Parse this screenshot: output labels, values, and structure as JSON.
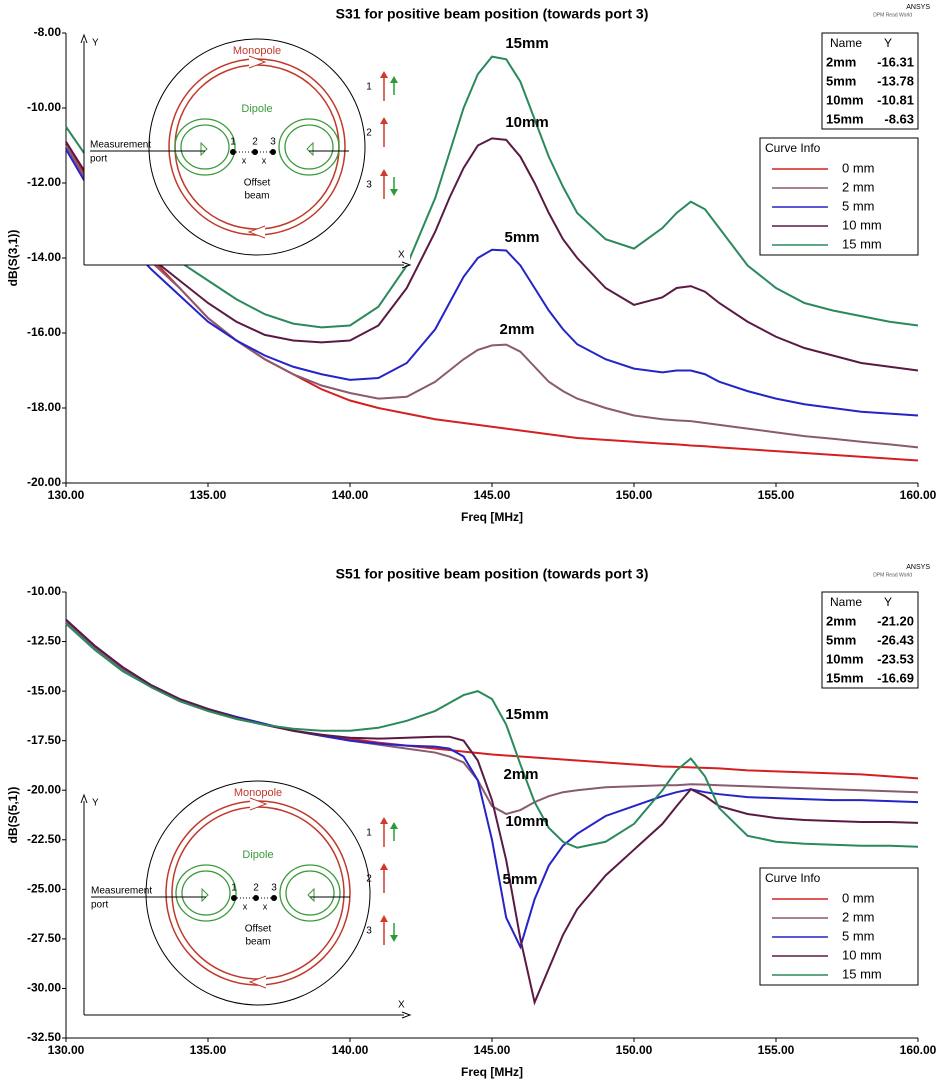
{
  "chart_data": [
    {
      "type": "line",
      "title": "S31 for positive beam position (towards port 3)",
      "brand": "ANSYS",
      "watermark": "DPM Read World",
      "x_label": "Freq [MHz]",
      "y_label": "dB(S(3,1))",
      "x": [
        130,
        131,
        132,
        133,
        134,
        135,
        136,
        137,
        138,
        139,
        140,
        141,
        142,
        143,
        143.5,
        144,
        144.5,
        145,
        145.5,
        146,
        146.5,
        147,
        147.5,
        148,
        149,
        150,
        151,
        151.5,
        152,
        152.5,
        153,
        154,
        155,
        156,
        157,
        158,
        159,
        160
      ],
      "xlim": [
        130,
        160
      ],
      "xticks": [
        {
          "value": 130,
          "label": "130.00"
        },
        {
          "value": 135,
          "label": "135.00"
        },
        {
          "value": 140,
          "label": "140.00"
        },
        {
          "value": 145,
          "label": "145.00"
        },
        {
          "value": 150,
          "label": "150.00"
        },
        {
          "value": 155,
          "label": "155.00"
        },
        {
          "value": 160,
          "label": "160.00"
        }
      ],
      "ylim": [
        -20,
        -8
      ],
      "yticks": [
        {
          "value": -8,
          "label": "-8.00"
        },
        {
          "value": -10,
          "label": "-10.00"
        },
        {
          "value": -12,
          "label": "-12.00"
        },
        {
          "value": -14,
          "label": "-14.00"
        },
        {
          "value": -16,
          "label": "-16.00"
        },
        {
          "value": -18,
          "label": "-18.00"
        },
        {
          "value": -20,
          "label": "-20.00"
        }
      ],
      "legend_title": "Curve Info",
      "series": [
        {
          "name": "0 mm",
          "color": "#d42020",
          "values": [
            -10.9,
            -12.2,
            -13.2,
            -14.0,
            -14.8,
            -15.6,
            -16.2,
            -16.7,
            -17.1,
            -17.5,
            -17.8,
            -18.0,
            -18.15,
            -18.3,
            -18.35,
            -18.4,
            -18.45,
            -18.5,
            -18.55,
            -18.6,
            -18.65,
            -18.7,
            -18.75,
            -18.8,
            -18.85,
            -18.9,
            -18.95,
            -18.97,
            -19.0,
            -19.02,
            -19.05,
            -19.1,
            -19.15,
            -19.2,
            -19.25,
            -19.3,
            -19.35,
            -19.4
          ]
        },
        {
          "name": "2 mm",
          "color": "#8a5a6e",
          "values": [
            -11.0,
            -12.3,
            -13.3,
            -14.1,
            -14.8,
            -15.6,
            -16.2,
            -16.7,
            -17.1,
            -17.4,
            -17.6,
            -17.75,
            -17.7,
            -17.3,
            -17.0,
            -16.7,
            -16.45,
            -16.33,
            -16.31,
            -16.5,
            -16.9,
            -17.3,
            -17.55,
            -17.75,
            -18.0,
            -18.2,
            -18.3,
            -18.33,
            -18.35,
            -18.4,
            -18.45,
            -18.55,
            -18.65,
            -18.75,
            -18.82,
            -18.9,
            -18.97,
            -19.05
          ]
        },
        {
          "name": "5 mm",
          "color": "#2424c8",
          "values": [
            -11.1,
            -12.4,
            -13.5,
            -14.3,
            -15.0,
            -15.7,
            -16.2,
            -16.6,
            -16.9,
            -17.1,
            -17.25,
            -17.2,
            -16.8,
            -15.9,
            -15.2,
            -14.5,
            -14.0,
            -13.78,
            -13.8,
            -14.2,
            -14.8,
            -15.4,
            -15.9,
            -16.3,
            -16.7,
            -16.95,
            -17.05,
            -17.0,
            -17.0,
            -17.1,
            -17.3,
            -17.55,
            -17.75,
            -17.9,
            -18.0,
            -18.1,
            -18.15,
            -18.2
          ]
        },
        {
          "name": "10 mm",
          "color": "#5a1a44",
          "values": [
            -10.9,
            -12.1,
            -13.1,
            -14.0,
            -14.6,
            -15.2,
            -15.7,
            -16.05,
            -16.2,
            -16.25,
            -16.2,
            -15.8,
            -14.8,
            -13.3,
            -12.4,
            -11.6,
            -11.0,
            -10.81,
            -10.85,
            -11.3,
            -12.0,
            -12.8,
            -13.5,
            -14.0,
            -14.8,
            -15.25,
            -15.05,
            -14.8,
            -14.75,
            -14.9,
            -15.2,
            -15.7,
            -16.1,
            -16.4,
            -16.6,
            -16.8,
            -16.9,
            -17.0
          ]
        },
        {
          "name": "15 mm",
          "color": "#2a8a5c",
          "values": [
            -10.5,
            -11.6,
            -12.5,
            -13.3,
            -14.1,
            -14.6,
            -15.1,
            -15.5,
            -15.75,
            -15.85,
            -15.8,
            -15.3,
            -14.2,
            -12.4,
            -11.2,
            -10.0,
            -9.1,
            -8.63,
            -8.7,
            -9.3,
            -10.3,
            -11.3,
            -12.1,
            -12.8,
            -13.5,
            -13.75,
            -13.2,
            -12.8,
            -12.5,
            -12.7,
            -13.2,
            -14.2,
            -14.8,
            -15.2,
            -15.4,
            -15.55,
            -15.7,
            -15.8
          ]
        }
      ],
      "annotations": [
        "15mm",
        "10mm",
        "5mm",
        "2mm"
      ],
      "markers": {
        "columns": [
          "Name",
          "Y"
        ],
        "rows": [
          [
            "2mm",
            "-16.31"
          ],
          [
            "5mm",
            "-13.78"
          ],
          [
            "10mm",
            "-10.81"
          ],
          [
            "15mm",
            "-8.63"
          ]
        ]
      },
      "inset": {
        "axis_y": "Y",
        "axis_x": "X",
        "monopole": "Monopole",
        "dipole": "Dipole",
        "port": [
          "Measurement",
          "port"
        ],
        "beam": [
          "Offset",
          "beam"
        ],
        "positions": [
          "1",
          "2",
          "3"
        ],
        "beam_marks": [
          "x",
          "x"
        ],
        "arrows": [
          "1",
          "2",
          "3"
        ]
      }
    },
    {
      "type": "line",
      "title": "S51 for positive beam position (towards port 3)",
      "brand": "ANSYS",
      "watermark": "DPM Read World",
      "x_label": "Freq [MHz]",
      "y_label": "dB(S(5,1))",
      "x": [
        130,
        131,
        132,
        133,
        134,
        135,
        136,
        137,
        138,
        139,
        140,
        141,
        142,
        143,
        143.5,
        144,
        144.5,
        145,
        145.5,
        146,
        146.5,
        147,
        147.5,
        148,
        149,
        150,
        151,
        151.5,
        152,
        152.5,
        153,
        154,
        155,
        156,
        157,
        158,
        159,
        160
      ],
      "xlim": [
        130,
        160
      ],
      "xticks": [
        {
          "value": 130,
          "label": "130.00"
        },
        {
          "value": 135,
          "label": "135.00"
        },
        {
          "value": 140,
          "label": "140.00"
        },
        {
          "value": 145,
          "label": "145.00"
        },
        {
          "value": 150,
          "label": "150.00"
        },
        {
          "value": 155,
          "label": "155.00"
        },
        {
          "value": 160,
          "label": "160.00"
        }
      ],
      "ylim": [
        -32.5,
        -10
      ],
      "yticks": [
        {
          "value": -10,
          "label": "-10.00"
        },
        {
          "value": -12.5,
          "label": "-12.50"
        },
        {
          "value": -15,
          "label": "-15.00"
        },
        {
          "value": -17.5,
          "label": "-17.50"
        },
        {
          "value": -20,
          "label": "-20.00"
        },
        {
          "value": -22.5,
          "label": "-22.50"
        },
        {
          "value": -25,
          "label": "-25.00"
        },
        {
          "value": -27.5,
          "label": "-27.50"
        },
        {
          "value": -30,
          "label": "-30.00"
        },
        {
          "value": -32.5,
          "label": "-32.50"
        }
      ],
      "legend_title": "Curve Info",
      "series": [
        {
          "name": "0 mm",
          "color": "#d42020",
          "values": [
            -11.5,
            -12.8,
            -13.9,
            -14.8,
            -15.5,
            -16.0,
            -16.4,
            -16.7,
            -17.0,
            -17.2,
            -17.4,
            -17.6,
            -17.75,
            -17.9,
            -17.97,
            -18.05,
            -18.12,
            -18.2,
            -18.25,
            -18.3,
            -18.35,
            -18.4,
            -18.45,
            -18.5,
            -18.6,
            -18.7,
            -18.8,
            -18.82,
            -18.85,
            -18.87,
            -18.9,
            -19.0,
            -19.05,
            -19.1,
            -19.15,
            -19.2,
            -19.3,
            -19.4
          ]
        },
        {
          "name": "2 mm",
          "color": "#8a5a6e",
          "values": [
            -11.5,
            -12.8,
            -13.9,
            -14.8,
            -15.5,
            -16.0,
            -16.4,
            -16.7,
            -17.0,
            -17.25,
            -17.5,
            -17.7,
            -17.9,
            -18.1,
            -18.3,
            -18.6,
            -19.5,
            -20.8,
            -21.2,
            -21.0,
            -20.6,
            -20.3,
            -20.1,
            -20.0,
            -19.85,
            -19.8,
            -19.75,
            -19.75,
            -19.7,
            -19.72,
            -19.75,
            -19.8,
            -19.85,
            -19.9,
            -19.95,
            -20.0,
            -20.05,
            -20.1
          ]
        },
        {
          "name": "5 mm",
          "color": "#2424c8",
          "values": [
            -11.4,
            -12.7,
            -13.8,
            -14.7,
            -15.4,
            -15.9,
            -16.3,
            -16.65,
            -17.0,
            -17.25,
            -17.5,
            -17.65,
            -17.75,
            -17.8,
            -17.9,
            -18.3,
            -19.5,
            -22.5,
            -26.43,
            -27.9,
            -25.5,
            -23.8,
            -22.8,
            -22.2,
            -21.3,
            -20.8,
            -20.3,
            -20.1,
            -19.95,
            -20.1,
            -20.2,
            -20.35,
            -20.4,
            -20.45,
            -20.5,
            -20.5,
            -20.55,
            -20.6
          ]
        },
        {
          "name": "10 mm",
          "color": "#5a1a44",
          "values": [
            -11.4,
            -12.7,
            -13.8,
            -14.7,
            -15.4,
            -15.9,
            -16.35,
            -16.7,
            -17.0,
            -17.2,
            -17.35,
            -17.4,
            -17.35,
            -17.3,
            -17.3,
            -17.5,
            -18.5,
            -20.5,
            -23.53,
            -27.5,
            -30.7,
            -29.0,
            -27.3,
            -26.0,
            -24.3,
            -23.0,
            -21.7,
            -20.8,
            -19.95,
            -20.3,
            -20.8,
            -21.2,
            -21.4,
            -21.5,
            -21.55,
            -21.6,
            -21.6,
            -21.65
          ]
        },
        {
          "name": "15 mm",
          "color": "#2a8a5c",
          "values": [
            -11.6,
            -12.9,
            -14.0,
            -14.8,
            -15.5,
            -16.0,
            -16.4,
            -16.7,
            -16.9,
            -17.0,
            -17.0,
            -16.85,
            -16.5,
            -16.0,
            -15.6,
            -15.2,
            -15.0,
            -15.4,
            -16.69,
            -18.7,
            -20.6,
            -21.9,
            -22.6,
            -22.9,
            -22.6,
            -21.7,
            -20.0,
            -19.0,
            -18.4,
            -19.3,
            -20.9,
            -22.3,
            -22.6,
            -22.7,
            -22.75,
            -22.8,
            -22.8,
            -22.85
          ]
        }
      ],
      "annotations": [
        "15mm",
        "2mm",
        "10mm",
        "5mm"
      ],
      "markers": {
        "columns": [
          "Name",
          "Y"
        ],
        "rows": [
          [
            "2mm",
            "-21.20"
          ],
          [
            "5mm",
            "-26.43"
          ],
          [
            "10mm",
            "-23.53"
          ],
          [
            "15mm",
            "-16.69"
          ]
        ]
      },
      "inset": {
        "axis_y": "Y",
        "axis_x": "X",
        "monopole": "Monopole",
        "dipole": "Dipole",
        "port": [
          "Measurement",
          "port"
        ],
        "beam": [
          "Offset",
          "beam"
        ],
        "positions": [
          "1",
          "2",
          "3"
        ],
        "beam_marks": [
          "x",
          "x"
        ],
        "arrows": [
          "1",
          "2",
          "3"
        ]
      }
    }
  ]
}
